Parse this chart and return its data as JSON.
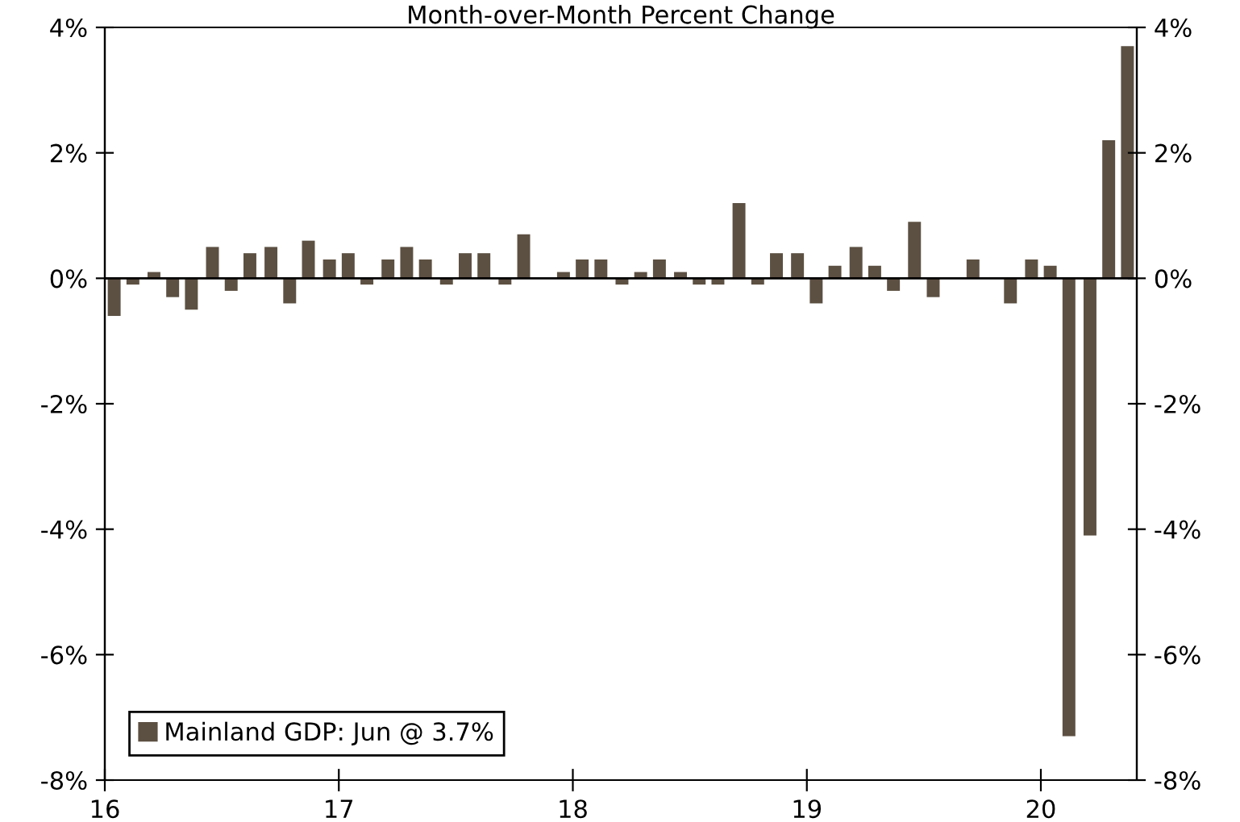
{
  "chart_data": {
    "type": "bar",
    "title": "Month-over-Month Percent Change",
    "x": [
      16.04,
      16.12,
      16.21,
      16.29,
      16.37,
      16.46,
      16.54,
      16.62,
      16.71,
      16.79,
      16.87,
      16.96,
      17.04,
      17.12,
      17.21,
      17.29,
      17.37,
      17.46,
      17.54,
      17.62,
      17.71,
      17.79,
      17.87,
      17.96,
      18.04,
      18.12,
      18.21,
      18.29,
      18.37,
      18.46,
      18.54,
      18.62,
      18.71,
      18.79,
      18.87,
      18.96,
      19.04,
      19.12,
      19.21,
      19.29,
      19.37,
      19.46,
      19.54,
      19.62,
      19.71,
      19.79,
      19.87,
      19.96,
      20.04,
      20.12,
      20.21,
      20.29,
      20.37
    ],
    "series": [
      {
        "name": "Mainland GDP: Jun @ 3.7%",
        "color": "#5c5042",
        "values": [
          -0.6,
          -0.1,
          0.1,
          -0.3,
          -0.5,
          0.5,
          -0.2,
          0.4,
          0.5,
          -0.4,
          0.6,
          0.3,
          0.4,
          -0.1,
          0.3,
          0.5,
          0.3,
          -0.1,
          0.4,
          0.4,
          -0.1,
          0.7,
          0,
          0.1,
          0.3,
          0.3,
          -0.1,
          0.1,
          0.3,
          0.1,
          -0.1,
          -0.1,
          1.2,
          -0.1,
          0.4,
          0.4,
          -0.4,
          0.2,
          0.5,
          0.2,
          -0.2,
          0.9,
          -0.3,
          0,
          0.3,
          0,
          -0.4,
          0.3,
          0.2,
          -7.3,
          -4.1,
          2.2,
          3.7
        ]
      }
    ],
    "xlim": [
      16,
      20.41
    ],
    "xticks": [
      16,
      17,
      18,
      19,
      20
    ],
    "ylim": [
      -8,
      4
    ],
    "yticks": [
      {
        "value": -8,
        "label": "-8%"
      },
      {
        "value": -6,
        "label": "-6%"
      },
      {
        "value": -4,
        "label": "-4%"
      },
      {
        "value": -2,
        "label": "-2%"
      },
      {
        "value": 0,
        "label": "0%"
      },
      {
        "value": 2,
        "label": "2%"
      },
      {
        "value": 4,
        "label": "4%"
      }
    ],
    "y2lim": [
      -8,
      4
    ],
    "y2ticks": [
      {
        "value": -8,
        "label": "-8%"
      },
      {
        "value": -6,
        "label": "-6%"
      },
      {
        "value": -4,
        "label": "-4%"
      },
      {
        "value": -2,
        "label": "-2%"
      },
      {
        "value": 0,
        "label": "0%"
      },
      {
        "value": 2,
        "label": "2%"
      },
      {
        "value": 4,
        "label": "4%"
      }
    ],
    "ref_lines": [
      {
        "axis": "y",
        "value": 0,
        "color": "#000000"
      }
    ],
    "grid": false,
    "legend": "bottom left"
  }
}
